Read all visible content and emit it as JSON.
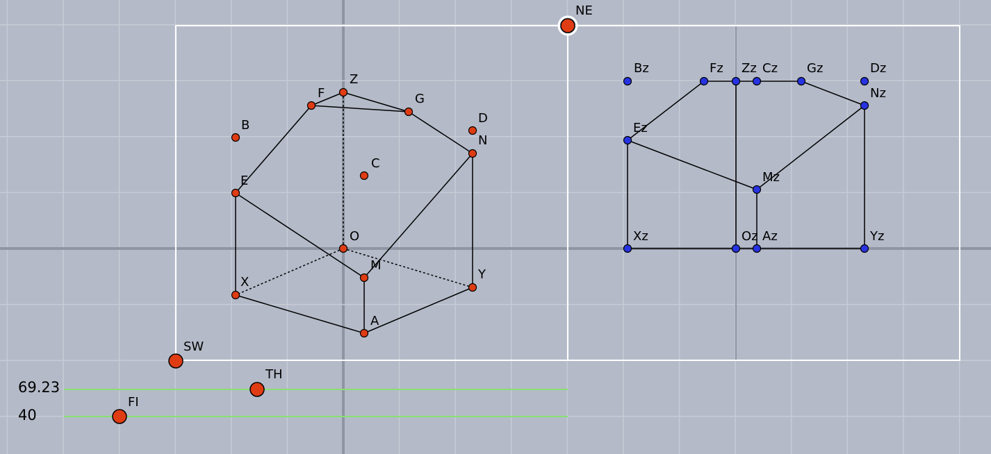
{
  "colors": {
    "background": "#b4bac8",
    "grid": "#c7ccd6",
    "axis": "#8f95a3",
    "frame": "#ffffff",
    "red_point": "#e03c14",
    "blue_point": "#2733e0",
    "slider": "#88e070"
  },
  "handles": {
    "NE": "NE",
    "SW": "SW",
    "TH": "TH",
    "FI": "FI"
  },
  "sliders": {
    "th_value": "69.23",
    "fi_value": "40"
  },
  "isometric_view": {
    "labels": [
      "Z",
      "F",
      "G",
      "D",
      "N",
      "B",
      "C",
      "E",
      "O",
      "M",
      "X",
      "Y",
      "A"
    ]
  },
  "front_view": {
    "labels": [
      "Bz",
      "Fz",
      "Zz",
      "Cz",
      "Gz",
      "Dz",
      "Nz",
      "Ez",
      "Mz",
      "Xz",
      "Oz",
      "Az",
      "Yz"
    ]
  }
}
